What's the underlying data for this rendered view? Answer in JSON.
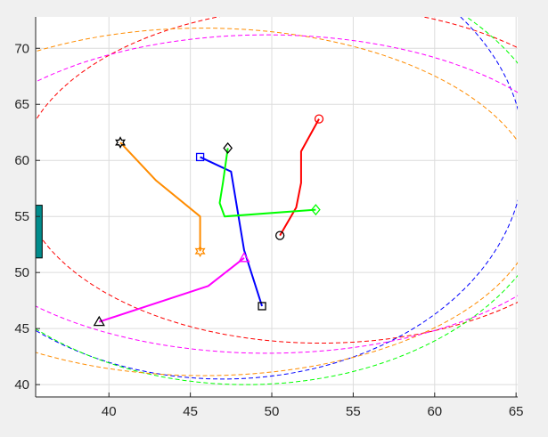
{
  "chart_data": {
    "type": "line",
    "title": "",
    "xlabel": "",
    "ylabel": "",
    "xlim": [
      35.5,
      65.1
    ],
    "ylim": [
      38.9,
      72.8
    ],
    "xticks": [
      40,
      45,
      50,
      55,
      60,
      65
    ],
    "yticks": [
      40,
      45,
      50,
      55,
      60,
      65,
      70
    ],
    "xtick_labels": [
      "40",
      "45",
      "50",
      "55",
      "60",
      "65"
    ],
    "ytick_labels": [
      "40",
      "45",
      "50",
      "55",
      "60",
      "65",
      "70"
    ],
    "grid": true,
    "legend": "none",
    "background": "#ffffff",
    "axis_color": "#262626",
    "grid_color": "#dcdcdc",
    "series": [
      {
        "color": "#ff0000",
        "start_marker": "circle",
        "end_marker": "circle",
        "start_color": "#000000",
        "end_color": "#ff0000",
        "points": [
          [
            50.5,
            53.3
          ],
          [
            51.5,
            55.8
          ],
          [
            51.8,
            58.0
          ],
          [
            51.8,
            60.8
          ],
          [
            52.9,
            63.7
          ]
        ]
      },
      {
        "color": "#0000ff",
        "start_marker": "square",
        "end_marker": "square",
        "start_color": "#000000",
        "end_color": "#0000ff",
        "points": [
          [
            49.4,
            47.0
          ],
          [
            48.3,
            52.0
          ],
          [
            47.5,
            59.0
          ],
          [
            45.6,
            60.3
          ]
        ]
      },
      {
        "color": "#00ff00",
        "start_marker": "diamond",
        "end_marker": "diamond",
        "start_color": "#000000",
        "end_color": "#00ff00",
        "points": [
          [
            47.3,
            61.1
          ],
          [
            47.0,
            58.0
          ],
          [
            46.8,
            56.2
          ],
          [
            47.1,
            55.0
          ],
          [
            52.7,
            55.6
          ]
        ]
      },
      {
        "color": "#ff8c00",
        "start_marker": "hexagram",
        "end_marker": "hexagram",
        "start_color": "#000000",
        "end_color": "#ff8c00",
        "points": [
          [
            40.7,
            61.6
          ],
          [
            42.9,
            58.2
          ],
          [
            45.6,
            55.0
          ],
          [
            45.6,
            51.9
          ]
        ]
      },
      {
        "color": "#ff00ff",
        "start_marker": "triangle",
        "end_marker": "triangle",
        "start_color": "#000000",
        "end_color": "#ff00ff",
        "points": [
          [
            39.4,
            45.6
          ],
          [
            46.1,
            48.8
          ],
          [
            48.3,
            51.3
          ]
        ]
      }
    ],
    "ellipses": [
      {
        "color": "#ff0000",
        "cx": 53.0,
        "cy": 58.7,
        "rx": 18.5,
        "ry": 15.0
      },
      {
        "color": "#0000ff",
        "cx": 47.0,
        "cy": 60.5,
        "rx": 18.5,
        "ry": 20.0
      },
      {
        "color": "#00ff00",
        "cx": 48.4,
        "cy": 59.2,
        "rx": 19.2,
        "ry": 19.2
      },
      {
        "color": "#ff8c00",
        "cx": 45.8,
        "cy": 56.3,
        "rx": 20.6,
        "ry": 15.5
      },
      {
        "color": "#ff00ff",
        "cx": 49.7,
        "cy": 57.0,
        "rx": 20.0,
        "ry": 14.2
      }
    ],
    "obstacle": {
      "color": "#008b8b",
      "x0": 35.5,
      "x1": 35.9,
      "y0": 51.3,
      "y1": 56.0
    }
  }
}
